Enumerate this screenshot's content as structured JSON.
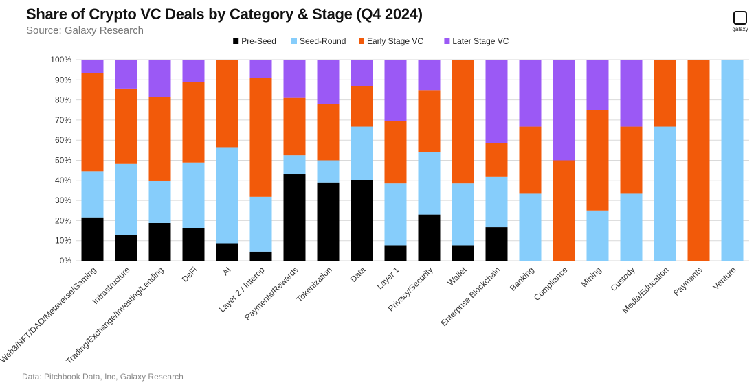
{
  "header": {
    "title": "Share of Crypto VC Deals by Category & Stage (Q4 2024)",
    "subtitle": "Source: Galaxy Research",
    "logo_text": "galaxy"
  },
  "footer": {
    "text": "Data: Pitchbook Data, Inc, Galaxy Research"
  },
  "chart_data": {
    "type": "bar",
    "stacked": true,
    "title": "Share of Crypto VC Deals by Category & Stage (Q4 2024)",
    "xlabel": "",
    "ylabel": "",
    "ylim": [
      0,
      100
    ],
    "yticks": [
      "0%",
      "10%",
      "20%",
      "30%",
      "40%",
      "50%",
      "60%",
      "70%",
      "80%",
      "90%",
      "100%"
    ],
    "legend_position": "top",
    "categories": [
      "Web3/NFT/DAO/Metaverse/Gaming",
      "Infrastructure",
      "Trading/Exchange/Investing/Lending",
      "DeFi",
      "AI",
      "Layer 2 / Interop",
      "Payments/Rewards",
      "Tokenization",
      "Data",
      "Layer 1",
      "Privacy/Security",
      "Wallet",
      "Enterprise Blockchain",
      "Banking",
      "Compliance",
      "Mining",
      "Custody",
      "Media/Education",
      "Payments",
      "Venture"
    ],
    "series": [
      {
        "name": "Pre-Seed",
        "color": "#000000",
        "values": [
          21.6,
          12.8,
          18.8,
          16.3,
          8.7,
          4.5,
          43.0,
          39.0,
          40.0,
          7.7,
          23.0,
          7.7,
          16.7,
          0,
          0,
          0,
          0,
          0,
          0,
          0
        ]
      },
      {
        "name": "Seed-Round",
        "color": "#86cdfb",
        "values": [
          23.0,
          35.4,
          20.8,
          32.6,
          47.8,
          27.3,
          9.5,
          11.0,
          26.7,
          30.8,
          31.0,
          30.8,
          25.0,
          33.3,
          0,
          25.0,
          33.3,
          66.7,
          0,
          100
        ]
      },
      {
        "name": "Early Stage VC",
        "color": "#f25a0a",
        "values": [
          48.6,
          37.5,
          41.7,
          40.1,
          43.5,
          59.1,
          28.5,
          28.0,
          20.0,
          30.8,
          30.9,
          61.5,
          16.7,
          33.4,
          50.0,
          50.0,
          33.4,
          33.3,
          100,
          0
        ]
      },
      {
        "name": "Later Stage VC",
        "color": "#9b59f5",
        "values": [
          6.8,
          14.3,
          18.7,
          11.0,
          0,
          9.1,
          19.0,
          22.0,
          13.3,
          30.7,
          15.1,
          0,
          41.6,
          33.3,
          50.0,
          25.0,
          33.3,
          0,
          0,
          0
        ]
      }
    ]
  }
}
